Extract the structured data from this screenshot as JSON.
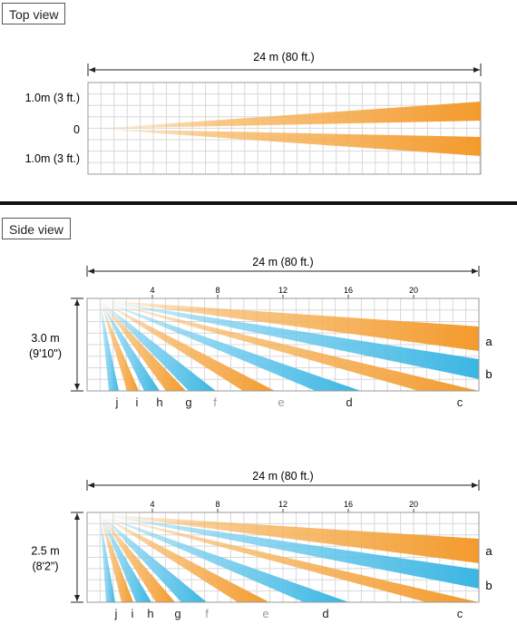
{
  "top_view": {
    "label": "Top view",
    "range_label": "24 m (80 ft.)",
    "left_labels": [
      "1.0m (3 ft.)",
      "0",
      "1.0m (3 ft.)"
    ]
  },
  "side_view": {
    "label": "Side view"
  },
  "side_diagrams": [
    {
      "range_label": "24 m (80 ft.)",
      "ticks": [
        "4",
        "8",
        "12",
        "16",
        "20"
      ],
      "height_label": [
        "3.0 m",
        "(9'10\")"
      ],
      "right_labels": [
        "a",
        "b"
      ],
      "bottom_labels": [
        "j",
        "i",
        "h",
        "g",
        "f",
        "e",
        "d",
        "c"
      ]
    },
    {
      "range_label": "24 m (80 ft.)",
      "ticks": [
        "4",
        "8",
        "12",
        "16",
        "20"
      ],
      "height_label": [
        "2.5 m",
        "(8'2\")"
      ],
      "right_labels": [
        "a",
        "b"
      ],
      "bottom_labels": [
        "j",
        "i",
        "h",
        "g",
        "f",
        "e",
        "d",
        "c"
      ]
    }
  ],
  "colors": {
    "orange": "#f39a2c",
    "blue": "#3ab6e2",
    "grid": "#d8d8d8",
    "faded_label": "#9a9a9a"
  }
}
